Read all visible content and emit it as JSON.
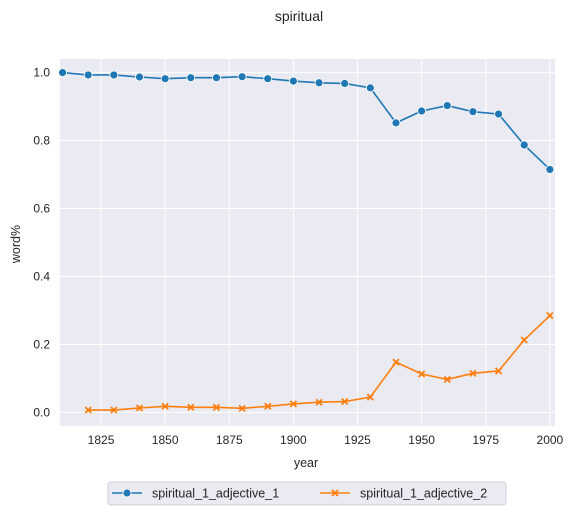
{
  "chart_data": {
    "type": "line",
    "title": "spiritual",
    "xlabel": "year",
    "ylabel": "word%",
    "xlim": [
      1809,
      2002
    ],
    "ylim": [
      -0.04,
      1.04
    ],
    "xticks": [
      1825,
      1850,
      1875,
      1900,
      1925,
      1950,
      1975,
      2000
    ],
    "yticks": [
      0.0,
      0.2,
      0.4,
      0.6,
      0.8,
      1.0
    ],
    "xtick_labels": [
      "1825",
      "1850",
      "1875",
      "1900",
      "1925",
      "1950",
      "1975",
      "2000"
    ],
    "ytick_labels": [
      "0.0",
      "0.2",
      "0.4",
      "0.6",
      "0.8",
      "1.0"
    ],
    "grid": true,
    "legend_position": "bottom-center",
    "series": [
      {
        "name": "spiritual_1_adjective_1",
        "color": "#1f77b4",
        "marker": "circle",
        "x": [
          1810,
          1820,
          1830,
          1840,
          1850,
          1860,
          1870,
          1880,
          1890,
          1900,
          1910,
          1920,
          1930,
          1940,
          1950,
          1960,
          1970,
          1980,
          1990,
          2000
        ],
        "y": [
          1.0,
          0.993,
          0.993,
          0.987,
          0.982,
          0.985,
          0.985,
          0.988,
          0.982,
          0.975,
          0.97,
          0.968,
          0.955,
          0.852,
          0.887,
          0.903,
          0.885,
          0.878,
          0.787,
          0.715
        ]
      },
      {
        "name": "spiritual_1_adjective_2",
        "color": "#ff7f0e",
        "marker": "x",
        "x": [
          1820,
          1830,
          1840,
          1850,
          1860,
          1870,
          1880,
          1890,
          1900,
          1910,
          1920,
          1930,
          1940,
          1950,
          1960,
          1970,
          1980,
          1990,
          2000
        ],
        "y": [
          0.007,
          0.007,
          0.013,
          0.018,
          0.015,
          0.015,
          0.012,
          0.018,
          0.025,
          0.03,
          0.032,
          0.045,
          0.148,
          0.113,
          0.097,
          0.115,
          0.122,
          0.213,
          0.285
        ]
      }
    ]
  }
}
